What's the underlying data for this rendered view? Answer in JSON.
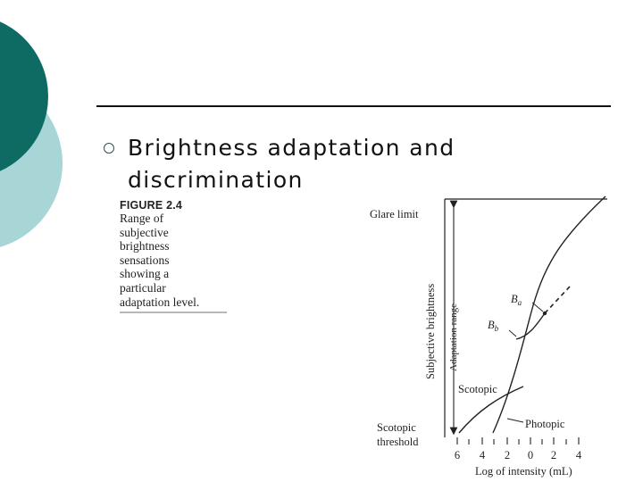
{
  "slide": {
    "heading_lines": [
      "Brightness adaptation and",
      "discrimination"
    ],
    "colors": {
      "dark_teal": "#0d6b63",
      "light_teal": "#a8d5d5",
      "text": "#111111"
    }
  },
  "figure": {
    "label": "FIGURE 2.4",
    "caption_lines": [
      "Range of",
      "subjective",
      "brightness",
      "sensations",
      "showing a",
      "particular",
      "adaptation level."
    ]
  },
  "diagram": {
    "glare_limit": "Glare limit",
    "y_axis_label": "Subjective brightness",
    "adaptation_range": "Adaptation range",
    "ba_label": "B",
    "ba_sub": "a",
    "bb_label": "B",
    "bb_sub": "b",
    "scotopic": "Scotopic",
    "photopic": "Photopic",
    "threshold_line1": "Scotopic",
    "threshold_line2": "threshold",
    "x_ticks": [
      "6",
      "4",
      "2",
      "0",
      "2",
      "4"
    ],
    "x_axis_label": "Log of intensity (mL)"
  }
}
